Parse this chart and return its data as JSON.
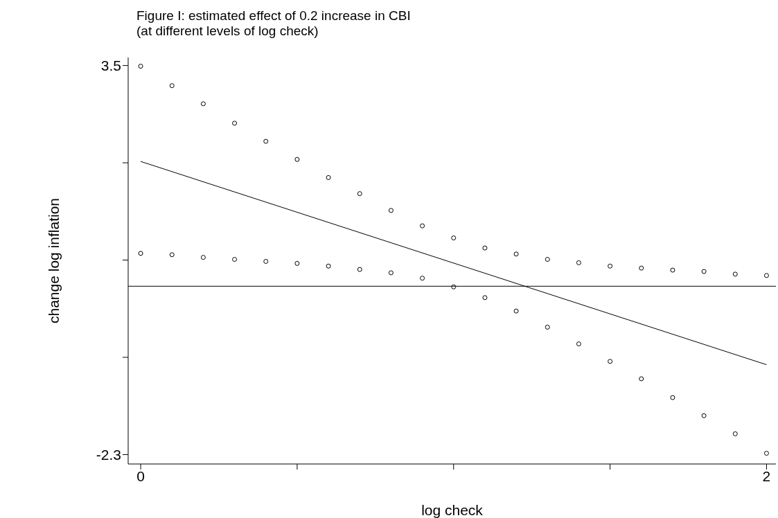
{
  "chart_data": {
    "type": "scatter",
    "title": "Figure I: estimated effect of 0.2 increase in CBI",
    "subtitle": "(at different levels of log check)",
    "xlabel": "log check",
    "ylabel": "change log inflation",
    "xlim": [
      -0.04,
      2.03
    ],
    "ylim": [
      -2.44,
      3.62
    ],
    "xticks": [
      0,
      {
        "value": 0.5,
        "label": null
      },
      {
        "value": 1,
        "label": null
      },
      {
        "value": 1.5,
        "label": null
      },
      2
    ],
    "yticks": [
      3.5,
      {
        "value": 2.05,
        "label": null
      },
      {
        "value": 0.6,
        "label": null
      },
      {
        "value": -0.85,
        "label": null
      },
      -2.3
    ],
    "x": [
      0,
      0.1,
      0.2,
      0.3,
      0.4,
      0.5,
      0.6,
      0.7,
      0.8,
      0.9,
      1,
      1.1,
      1.2,
      1.3,
      1.4,
      1.5,
      1.6,
      1.7,
      1.8,
      1.9,
      2
    ],
    "series": [
      {
        "color": "#000000",
        "values": [
          3.49,
          3.2,
          2.93,
          2.64,
          2.37,
          2.1,
          1.83,
          1.59,
          1.34,
          1.11,
          0.93,
          0.78,
          0.69,
          0.61,
          0.56,
          0.51,
          0.48,
          0.45,
          0.43,
          0.39,
          0.37
        ]
      },
      {
        "color": "#000000",
        "values": [
          0.7,
          0.68,
          0.64,
          0.61,
          0.58,
          0.55,
          0.51,
          0.46,
          0.41,
          0.33,
          0.2,
          0.04,
          -0.16,
          -0.4,
          -0.65,
          -0.91,
          -1.17,
          -1.45,
          -1.72,
          -1.99,
          -2.28
        ]
      },
      {
        "type": "line",
        "color": "#000000",
        "marker": "none",
        "x": [
          0,
          2
        ],
        "values": [
          2.07,
          -0.96
        ]
      }
    ],
    "ref_lines": [
      {
        "axis": "y",
        "value": 0.21,
        "color": "#000000"
      }
    ],
    "marker": "circle",
    "grid": false,
    "legend": false
  }
}
